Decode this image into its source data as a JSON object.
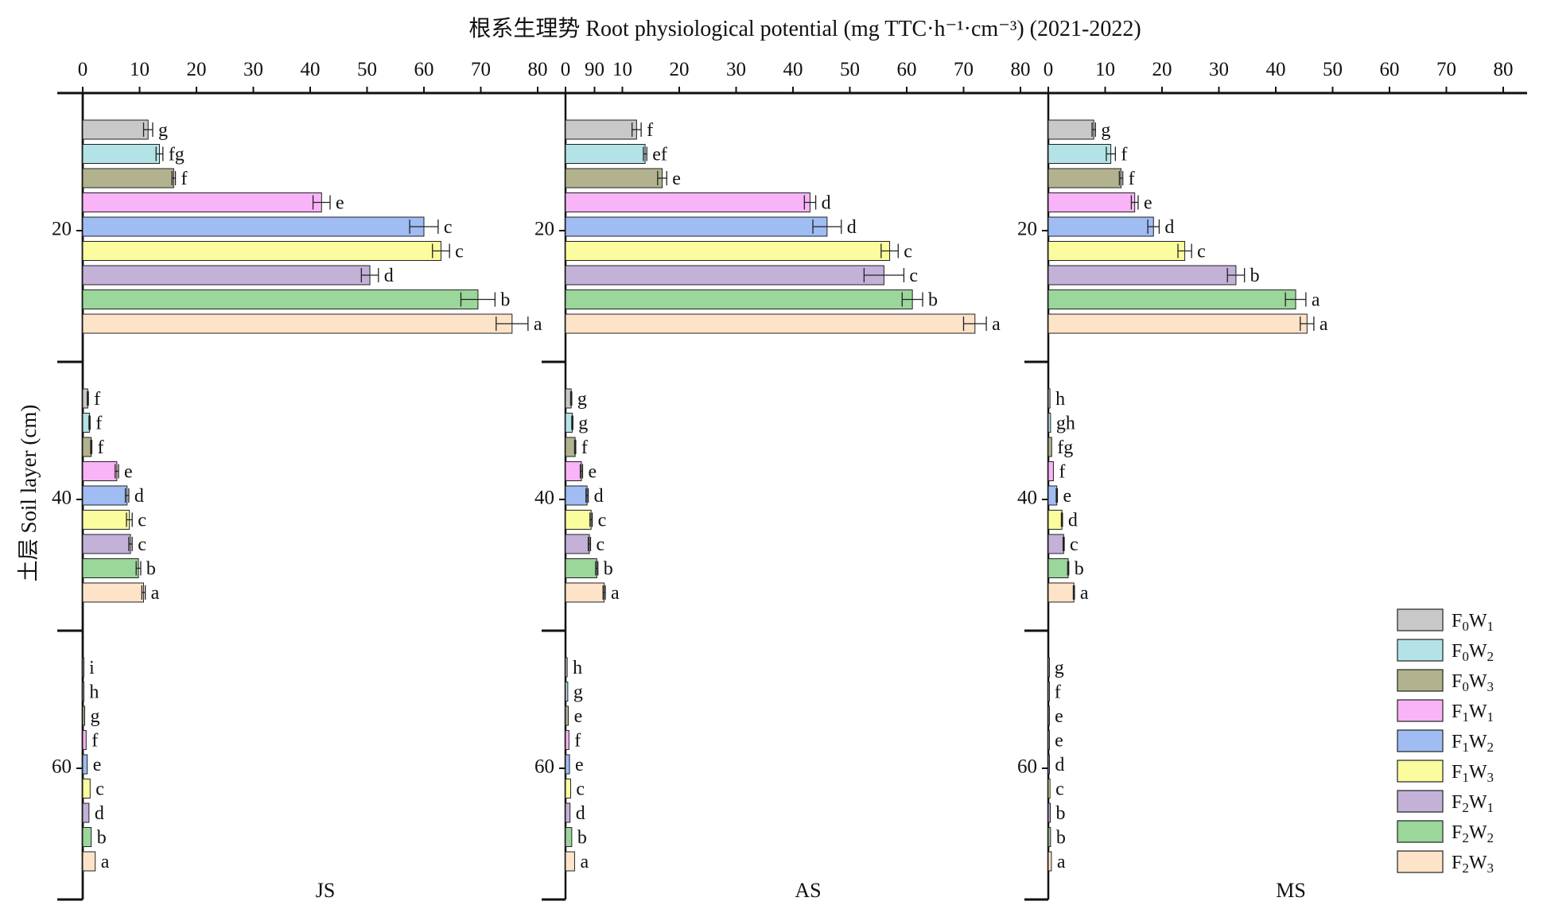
{
  "chart_data": {
    "type": "bar",
    "orientation": "horizontal",
    "title": "根系生理势 Root physiological potential (mg TTC·h⁻¹·cm⁻³) (2021-2022)",
    "ylabel": "土层 Soil layer (cm)",
    "y_ticks": [
      "20",
      "40",
      "60"
    ],
    "legend_position": "bottom-right",
    "series": [
      {
        "name": "F0W1",
        "base": "F",
        "sub1": "0",
        "mid": "W",
        "sub2": "1",
        "color": "#c8c8c8"
      },
      {
        "name": "F0W2",
        "base": "F",
        "sub1": "0",
        "mid": "W",
        "sub2": "2",
        "color": "#b3e3e6"
      },
      {
        "name": "F0W3",
        "base": "F",
        "sub1": "0",
        "mid": "W",
        "sub2": "3",
        "color": "#b2b38e"
      },
      {
        "name": "F1W1",
        "base": "F",
        "sub1": "1",
        "mid": "W",
        "sub2": "1",
        "color": "#f9b3f7"
      },
      {
        "name": "F1W2",
        "base": "F",
        "sub1": "1",
        "mid": "W",
        "sub2": "2",
        "color": "#9fbcf3"
      },
      {
        "name": "F1W3",
        "base": "F",
        "sub1": "1",
        "mid": "W",
        "sub2": "3",
        "color": "#fafc9e"
      },
      {
        "name": "F2W1",
        "base": "F",
        "sub1": "2",
        "mid": "W",
        "sub2": "1",
        "color": "#c3b1d8"
      },
      {
        "name": "F2W2",
        "base": "F",
        "sub1": "2",
        "mid": "W",
        "sub2": "2",
        "color": "#9bd69b"
      },
      {
        "name": "F2W3",
        "base": "F",
        "sub1": "2",
        "mid": "W",
        "sub2": "3",
        "color": "#fde3c8"
      }
    ],
    "panels": [
      {
        "name": "JS",
        "x_ticks": [
          "0",
          "10",
          "20",
          "30",
          "40",
          "50",
          "60",
          "70",
          "80",
          "90"
        ],
        "xlim": [
          0,
          90
        ],
        "layers": [
          {
            "values": [
              11.5,
              13.5,
              16,
              42,
              60,
              63,
              50.5,
              69.5,
              75.5
            ],
            "errors": [
              0.8,
              0.6,
              0.3,
              1.5,
              2.5,
              1.5,
              1.5,
              3,
              2.8
            ],
            "letters": [
              "g",
              "fg",
              "f",
              "e",
              "c",
              "c",
              "d",
              "b",
              "a"
            ]
          },
          {
            "values": [
              0.9,
              1.2,
              1.5,
              6,
              7.8,
              8.2,
              8.4,
              9.8,
              10.7
            ],
            "errors": [
              0.1,
              0.1,
              0.1,
              0.3,
              0.3,
              0.5,
              0.3,
              0.4,
              0.3
            ],
            "letters": [
              "f",
              "f",
              "f",
              "e",
              "d",
              "c",
              "c",
              "b",
              "a"
            ]
          },
          {
            "values": [
              0.15,
              0.2,
              0.35,
              0.6,
              0.8,
              1.3,
              1.1,
              1.5,
              2.2
            ],
            "errors": [
              0,
              0,
              0,
              0,
              0,
              0,
              0,
              0,
              0
            ],
            "letters": [
              "i",
              "h",
              "g",
              "f",
              "e",
              "c",
              "d",
              "b",
              "a"
            ]
          }
        ]
      },
      {
        "name": "AS",
        "x_ticks": [
          "0",
          "10",
          "20",
          "30",
          "40",
          "50",
          "60",
          "70",
          "80"
        ],
        "xlim": [
          0,
          80
        ],
        "layers": [
          {
            "values": [
              12.5,
              14,
              17,
              43,
              46,
              57,
              56,
              61,
              72
            ],
            "errors": [
              0.8,
              0.3,
              0.8,
              1,
              2.5,
              1.5,
              3.5,
              1.8,
              2
            ],
            "letters": [
              "f",
              "ef",
              "e",
              "d",
              "d",
              "c",
              "c",
              "b",
              "a"
            ]
          },
          {
            "values": [
              1,
              1.2,
              1.7,
              2.8,
              3.8,
              4.5,
              4.2,
              5.5,
              6.8
            ],
            "errors": [
              0.1,
              0.1,
              0.1,
              0.2,
              0.2,
              0.2,
              0.2,
              0.2,
              0.2
            ],
            "letters": [
              "g",
              "g",
              "f",
              "e",
              "d",
              "c",
              "c",
              "b",
              "a"
            ]
          },
          {
            "values": [
              0.3,
              0.4,
              0.5,
              0.6,
              0.7,
              0.9,
              0.8,
              1.1,
              1.6
            ],
            "errors": [
              0,
              0,
              0,
              0,
              0,
              0,
              0,
              0,
              0
            ],
            "letters": [
              "h",
              "g",
              "e",
              "f",
              "e",
              "c",
              "d",
              "b",
              "a"
            ]
          }
        ]
      },
      {
        "name": "MS",
        "x_ticks": [
          "0",
          "10",
          "20",
          "30",
          "40",
          "50",
          "60",
          "70",
          "80"
        ],
        "xlim": [
          0,
          80
        ],
        "layers": [
          {
            "values": [
              8,
              11,
              12.8,
              15.2,
              18.5,
              24,
              33,
              43.5,
              45.5
            ],
            "errors": [
              0.3,
              0.8,
              0.3,
              0.6,
              1,
              1.2,
              1.5,
              1.8,
              1.2
            ],
            "letters": [
              "g",
              "f",
              "f",
              "e",
              "d",
              "c",
              "b",
              "a",
              "a"
            ]
          },
          {
            "values": [
              0.3,
              0.4,
              0.6,
              0.9,
              1.5,
              2.4,
              2.7,
              3.5,
              4.5
            ],
            "errors": [
              0,
              0,
              0,
              0,
              0.1,
              0.1,
              0.1,
              0.1,
              0.1
            ],
            "letters": [
              "h",
              "gh",
              "fg",
              "f",
              "e",
              "d",
              "c",
              "b",
              "a"
            ]
          },
          {
            "values": [
              0.1,
              0.1,
              0.15,
              0.15,
              0.2,
              0.3,
              0.35,
              0.4,
              0.55
            ],
            "errors": [
              0,
              0,
              0,
              0,
              0,
              0,
              0,
              0,
              0
            ],
            "letters": [
              "g",
              "f",
              "e",
              "e",
              "d",
              "c",
              "b",
              "b",
              "a"
            ]
          }
        ]
      }
    ]
  }
}
